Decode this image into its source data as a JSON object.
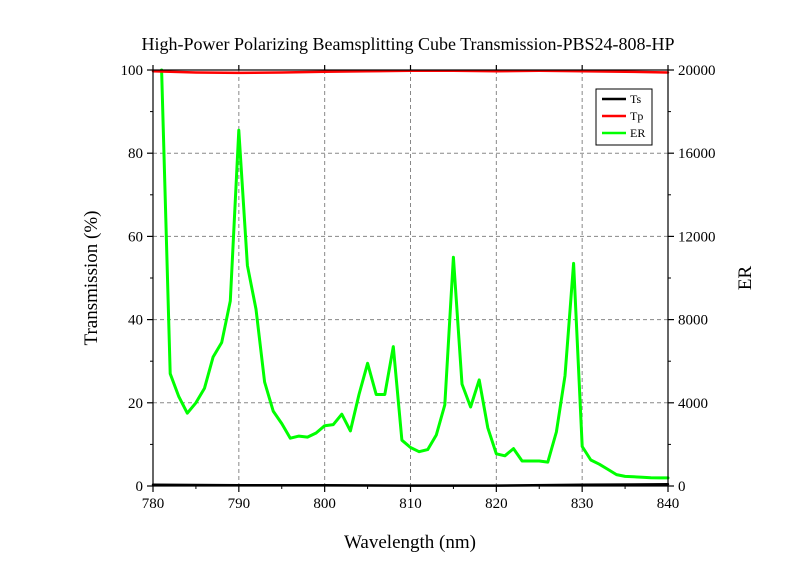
{
  "chart_data": {
    "type": "line",
    "title": "High-Power Polarizing Beamsplitting Cube Transmission-PBS24-808-HP",
    "xlabel": "Wavelength (nm)",
    "ylabel": "Transmission (%)",
    "y2label": "ER",
    "xlim": [
      780,
      840
    ],
    "ylim": [
      0,
      100
    ],
    "y2lim": [
      0,
      20000
    ],
    "xticks": [
      "780",
      "790",
      "800",
      "810",
      "820",
      "830",
      "840"
    ],
    "yticks": [
      "0",
      "20",
      "40",
      "60",
      "80",
      "100"
    ],
    "y2ticks": [
      "0",
      "4000",
      "8000",
      "12000",
      "16000",
      "20000"
    ],
    "grid": true,
    "legend_position": "top-right",
    "series": [
      {
        "name": "Ts",
        "axis": "left",
        "color": "#000000",
        "x": [
          780,
          790,
          800,
          810,
          820,
          830,
          840
        ],
        "values": [
          0.3,
          0.2,
          0.2,
          0.1,
          0.1,
          0.3,
          0.4
        ]
      },
      {
        "name": "Tp",
        "axis": "left",
        "color": "#ff0000",
        "x": [
          780,
          785,
          790,
          795,
          800,
          805,
          810,
          815,
          820,
          825,
          830,
          835,
          840
        ],
        "values": [
          99.7,
          99.4,
          99.3,
          99.4,
          99.6,
          99.7,
          99.8,
          99.8,
          99.7,
          99.8,
          99.7,
          99.6,
          99.4
        ]
      },
      {
        "name": "ER",
        "axis": "right",
        "color": "#00ff00",
        "x": [
          781,
          782,
          783,
          784,
          785,
          786,
          787,
          788,
          789,
          790,
          791,
          792,
          793,
          794,
          795,
          796,
          797,
          798,
          799,
          800,
          801,
          802,
          803,
          804,
          805,
          806,
          807,
          808,
          809,
          810,
          811,
          812,
          813,
          814,
          815,
          816,
          817,
          818,
          819,
          820,
          821,
          822,
          823,
          824,
          825,
          826,
          827,
          828,
          829,
          830,
          831,
          832,
          833,
          834,
          835,
          836,
          837,
          838,
          839,
          840
        ],
        "values": [
          20000,
          5400,
          4300,
          3500,
          4000,
          4700,
          6200,
          6900,
          8900,
          17100,
          10600,
          8500,
          5000,
          3600,
          3000,
          2300,
          2400,
          2350,
          2550,
          2900,
          2950,
          3450,
          2650,
          4400,
          5900,
          4400,
          4400,
          6700,
          2200,
          1850,
          1650,
          1750,
          2450,
          3900,
          11000,
          4900,
          3800,
          5100,
          2800,
          1550,
          1450,
          1800,
          1200,
          1200,
          1200,
          1150,
          2600,
          5300,
          10700,
          1900,
          1250,
          1050,
          800,
          550,
          460,
          440,
          420,
          400,
          390,
          390
        ]
      }
    ]
  }
}
